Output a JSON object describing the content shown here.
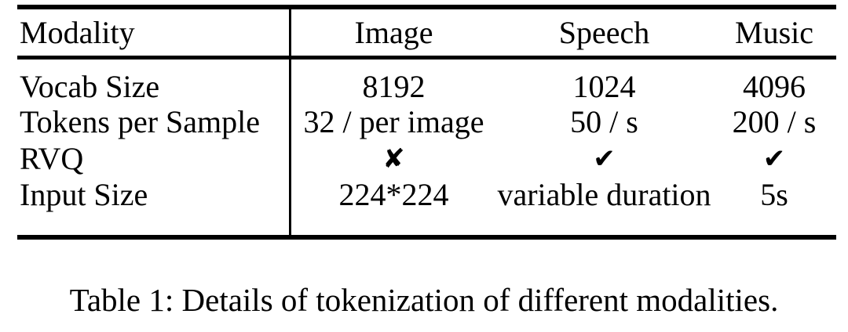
{
  "table": {
    "header": {
      "cells": [
        "Modality",
        "Image",
        "Speech",
        "Music"
      ]
    },
    "rows": [
      {
        "cells": [
          "Vocab Size",
          "8192",
          "1024",
          "4096"
        ]
      },
      {
        "cells": [
          "Tokens per Sample",
          "32 / per image",
          "50 / s",
          "200 / s"
        ]
      },
      {
        "cells": [
          "RVQ",
          "✘",
          "✔",
          "✔"
        ]
      },
      {
        "cells": [
          "Input Size",
          "224*224",
          "variable duration",
          "5s"
        ]
      }
    ],
    "caption": "Table 1: Details of tokenization of different modalities."
  },
  "colors": {
    "text": "#000000",
    "background": "#ffffff",
    "rule": "#000000"
  },
  "icons": {
    "cross": "✘",
    "check": "✔"
  },
  "chart_data": {
    "type": "table",
    "title": "Table 1: Details of tokenization of different modalities.",
    "columns": [
      "Modality",
      "Image",
      "Speech",
      "Music"
    ],
    "rows": [
      [
        "Vocab Size",
        "8192",
        "1024",
        "4096"
      ],
      [
        "Tokens per Sample",
        "32 / per image",
        "50 / s",
        "200 / s"
      ],
      [
        "RVQ",
        "✘",
        "✔",
        "✔"
      ],
      [
        "Input Size",
        "224*224",
        "variable duration",
        "5s"
      ]
    ],
    "layout_hints": {
      "rule_style": "booktabs (thick top/bottom rule, thin midrule)",
      "vertical_divider_after_column": 1,
      "body_alignment": "first column left, others centered"
    }
  }
}
